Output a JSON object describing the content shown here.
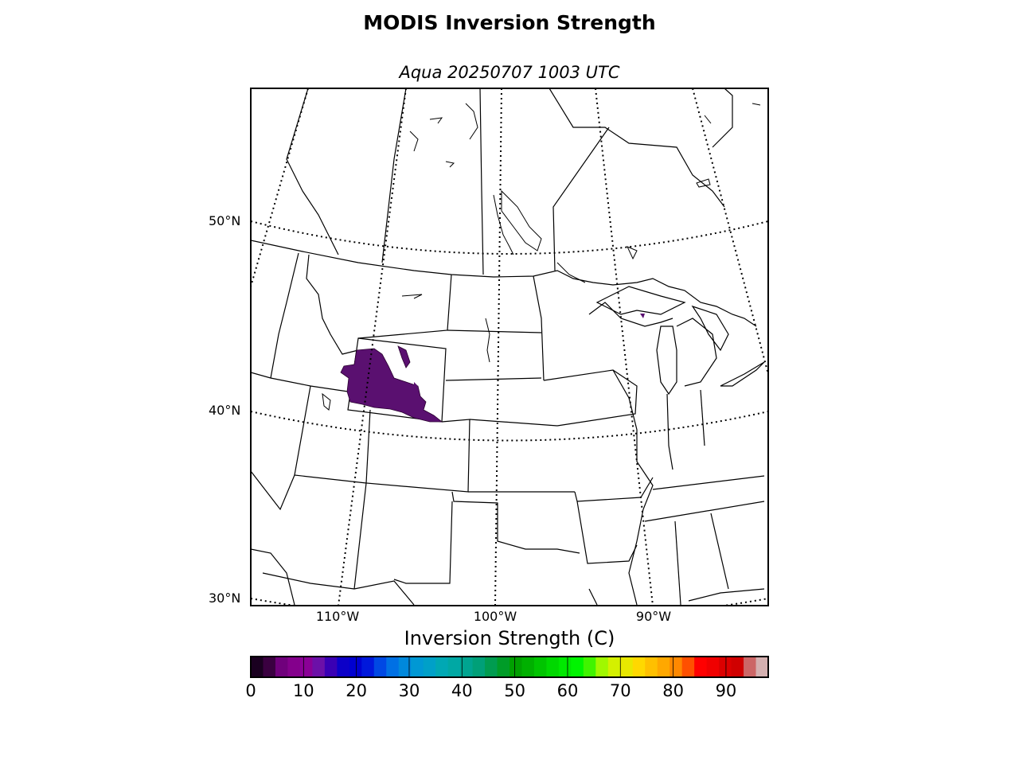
{
  "title": "MODIS Inversion Strength",
  "subtitle": "Aqua 20250707 1003 UTC",
  "map": {
    "lat_labels": [
      "50°N",
      "40°N",
      "30°N"
    ],
    "lon_labels": [
      "110°W",
      "100°W",
      "90°W"
    ],
    "gridlines": "dotted",
    "data_region": "Wyoming / Utah / Colorado border area",
    "data_color": "#5a1070"
  },
  "colorbar": {
    "label": "Inversion Strength (C)",
    "min": 0,
    "max": 98,
    "tick_labels": [
      "0",
      "10",
      "20",
      "30",
      "40",
      "50",
      "60",
      "70",
      "80",
      "90"
    ],
    "tick_values": [
      0,
      10,
      20,
      30,
      40,
      50,
      60,
      70,
      80,
      90
    ],
    "colors": [
      "#1a0020",
      "#3a0040",
      "#70007c",
      "#84008c",
      "#8a0096",
      "#6c10a8",
      "#3a00b4",
      "#0c00c8",
      "#0000d0",
      "#0018dc",
      "#0048e4",
      "#0070e4",
      "#0088dc",
      "#0098d4",
      "#00a0c8",
      "#00a8b4",
      "#00a8a4",
      "#00a490",
      "#00a078",
      "#009c50",
      "#009c28",
      "#00a000",
      "#00b000",
      "#00c400",
      "#00d800",
      "#00e800",
      "#00f400",
      "#40f400",
      "#a0f800",
      "#d4f000",
      "#e8e800",
      "#ffd800",
      "#ffc000",
      "#ffa800",
      "#ff8800",
      "#ff5000",
      "#ff0000",
      "#f00000",
      "#dc0000",
      "#d00000",
      "#cc6666",
      "#d4b0b0"
    ]
  }
}
